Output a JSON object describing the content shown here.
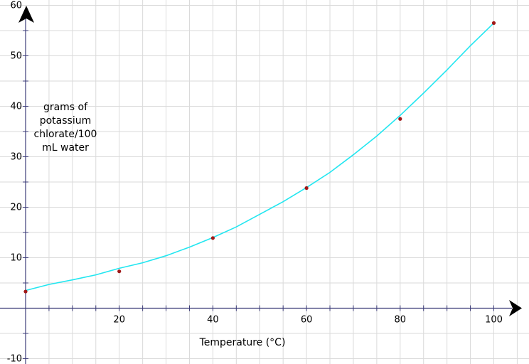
{
  "chart_data": {
    "type": "scatter",
    "title": "",
    "xlabel": "Temperature (°C)",
    "ylabel_lines": [
      "grams of",
      "potassium",
      "chlorate/100",
      "mL water"
    ],
    "xlim": [
      0,
      106
    ],
    "ylim": [
      -10,
      60
    ],
    "x_ticks": [
      20,
      40,
      60,
      80,
      100
    ],
    "y_ticks": [
      -10,
      10,
      20,
      30,
      40,
      50,
      60
    ],
    "grid": true,
    "colors": {
      "points": "#a01818",
      "curve": "#22e6f0",
      "axes": "#3c3c78",
      "grid": "#dadada"
    },
    "series": [
      {
        "type": "scatter",
        "x": [
          0,
          20,
          40,
          60,
          80,
          100
        ],
        "y": [
          3.3,
          7.3,
          13.9,
          23.8,
          37.5,
          56.5
        ]
      },
      {
        "type": "line",
        "x": [
          0,
          5,
          10,
          15,
          20,
          25,
          30,
          35,
          40,
          45,
          50,
          55,
          60,
          65,
          70,
          75,
          80,
          85,
          90,
          95,
          100
        ],
        "y": [
          3.5,
          4.7,
          5.6,
          6.6,
          7.9,
          9.0,
          10.4,
          12.1,
          14.0,
          16.1,
          18.6,
          21.1,
          23.9,
          26.9,
          30.4,
          34.1,
          38.2,
          42.6,
          47.2,
          52.0,
          56.5
        ]
      }
    ]
  }
}
